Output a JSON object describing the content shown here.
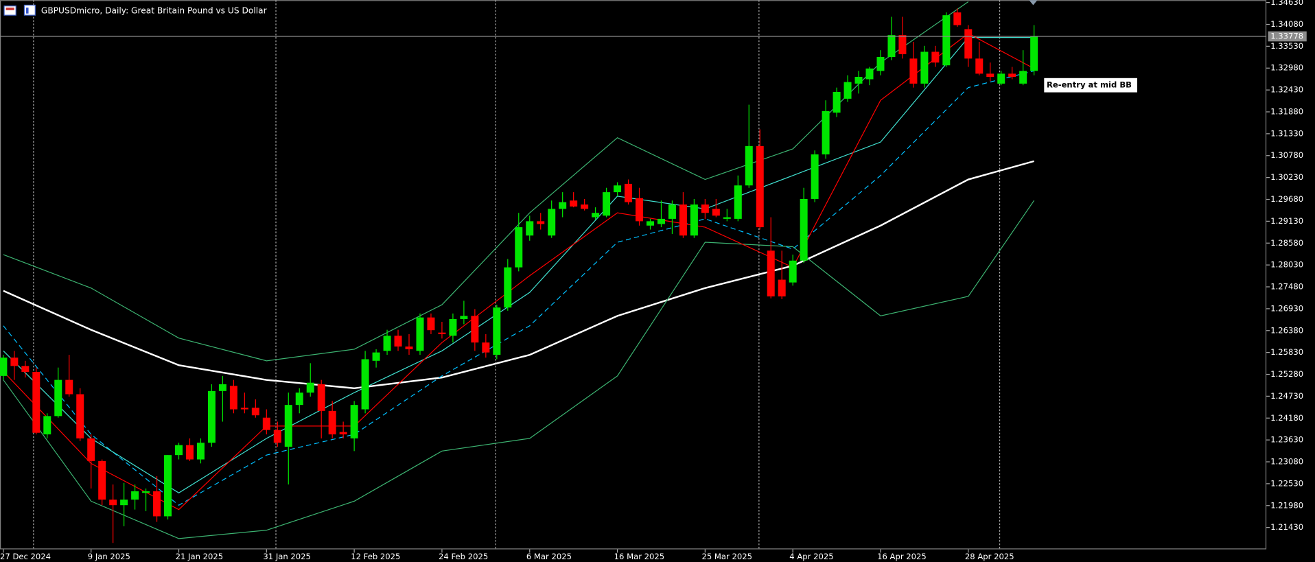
{
  "chart_data": {
    "type": "candlestick",
    "title": "GBPUSDmicro, Daily:  Great Britain Pound vs US Dollar",
    "categories": [
      "27 Dec 2024",
      null,
      null,
      null,
      null,
      null,
      null,
      null,
      "9 Jan 2025",
      null,
      null,
      null,
      null,
      null,
      null,
      null,
      "21 Jan 2025",
      null,
      null,
      null,
      null,
      null,
      null,
      null,
      "31 Jan 2025",
      null,
      null,
      null,
      null,
      null,
      null,
      null,
      "12 Feb 2025",
      null,
      null,
      null,
      null,
      null,
      null,
      null,
      "24 Feb 2025",
      null,
      null,
      null,
      null,
      null,
      null,
      null,
      "6 Mar 2025",
      null,
      null,
      null,
      null,
      null,
      null,
      null,
      "16 Mar 2025",
      null,
      null,
      null,
      null,
      null,
      null,
      null,
      "25 Mar 2025",
      null,
      null,
      null,
      null,
      null,
      null,
      null,
      "4 Apr 2025",
      null,
      null,
      null,
      null,
      null,
      null,
      null,
      "16 Apr 2025",
      null,
      null,
      null,
      null,
      null,
      null,
      null,
      "28 Apr 2025",
      null,
      null,
      null,
      null,
      null,
      null
    ],
    "open": [
      1.2524,
      1.257,
      1.2549,
      1.2534,
      1.2377,
      1.2423,
      1.2514,
      1.2478,
      1.2367,
      1.231,
      1.2213,
      1.2199,
      1.2213,
      1.223,
      1.2234,
      1.2171,
      1.2325,
      1.235,
      1.2314,
      1.2356,
      1.2486,
      1.2499,
      1.2444,
      1.2444,
      1.2419,
      1.2388,
      1.2346,
      1.2451,
      1.2482,
      1.2503,
      1.2436,
      1.2383,
      1.2367,
      1.244,
      1.2562,
      1.2587,
      1.2625,
      1.2598,
      1.2587,
      1.2671,
      1.2633,
      1.2625,
      1.2667,
      1.2675,
      1.2608,
      1.2577,
      1.2696,
      1.2797,
      1.2877,
      1.2913,
      1.2877,
      1.2944,
      1.2965,
      1.2955,
      1.2923,
      1.2927,
      1.2986,
      1.3007,
      1.2971,
      1.2902,
      1.2906,
      1.2919,
      1.2955,
      1.2877,
      1.2955,
      1.2944,
      1.2919,
      1.2919,
      1.3003,
      1.3102,
      1.2839,
      1.2766,
      1.2759,
      1.2814,
      1.2969,
      1.3081,
      1.3186,
      1.3221,
      1.3259,
      1.327,
      1.3291,
      1.3326,
      1.3381,
      1.3322,
      1.3259,
      1.3339,
      1.3305,
      1.3438,
      1.3396,
      1.3322,
      1.3284,
      1.3259,
      1.3284,
      1.3259,
      1.3291
    ],
    "high": [
      1.2577,
      1.2587,
      1.2562,
      1.2545,
      1.243,
      1.2545,
      1.2577,
      1.2493,
      1.2377,
      1.2314,
      1.2251,
      1.2255,
      1.2251,
      1.2241,
      1.2272,
      1.2325,
      1.2356,
      1.2367,
      1.2367,
      1.2503,
      1.2524,
      1.2514,
      1.2482,
      1.2465,
      1.244,
      1.2409,
      1.2482,
      1.2493,
      1.2556,
      1.2514,
      1.2461,
      1.2409,
      1.2461,
      1.2587,
      1.2591,
      1.264,
      1.264,
      1.2629,
      1.2681,
      1.2681,
      1.266,
      1.2681,
      1.2713,
      1.2692,
      1.2629,
      1.2703,
      1.2818,
      1.2934,
      1.2927,
      1.2934,
      1.2965,
      1.2986,
      1.2986,
      1.2969,
      1.2948,
      1.2997,
      1.3011,
      1.3018,
      1.2997,
      1.2919,
      1.2965,
      1.2965,
      1.2986,
      1.2969,
      1.2969,
      1.2969,
      1.2944,
      1.3028,
      1.3206,
      1.3144,
      1.2923,
      1.2839,
      1.2829,
      1.2997,
      1.3091,
      1.3217,
      1.3249,
      1.328,
      1.3291,
      1.3301,
      1.3343,
      1.3427,
      1.3427,
      1.3364,
      1.3354,
      1.3354,
      1.3438,
      1.3448,
      1.3406,
      1.3364,
      1.3312,
      1.3291,
      1.3301,
      1.3343,
      1.3406
    ],
    "low": [
      1.2514,
      1.2514,
      1.252,
      1.2377,
      1.2367,
      1.2419,
      1.2472,
      1.236,
      1.2241,
      1.2199,
      1.2104,
      1.2146,
      1.2188,
      1.2184,
      1.2157,
      1.2163,
      1.2314,
      1.231,
      1.2304,
      1.2346,
      1.2409,
      1.243,
      1.243,
      1.2419,
      1.2377,
      1.2346,
      1.2251,
      1.243,
      1.2472,
      1.2367,
      1.2367,
      1.2367,
      1.2335,
      1.243,
      1.2545,
      1.2577,
      1.2587,
      1.2577,
      1.2577,
      1.2629,
      1.2618,
      1.2608,
      1.2654,
      1.2587,
      1.257,
      1.2566,
      1.2688,
      1.2787,
      1.2864,
      1.2892,
      1.2871,
      1.2923,
      1.2948,
      1.294,
      1.2917,
      1.2923,
      1.2976,
      1.2955,
      1.2902,
      1.2892,
      1.2898,
      1.2881,
      1.2871,
      1.2871,
      1.2919,
      1.2923,
      1.2913,
      1.2913,
      1.2997,
      1.2892,
      1.2719,
      1.2717,
      1.2751,
      1.2808,
      1.2961,
      1.307,
      1.3175,
      1.3213,
      1.3234,
      1.3255,
      1.328,
      1.3318,
      1.3322,
      1.3249,
      1.3249,
      1.3301,
      1.3301,
      1.3402,
      1.3301,
      1.328,
      1.3265,
      1.3255,
      1.327,
      1.3255,
      1.328
    ],
    "close": [
      1.257,
      1.2549,
      1.2534,
      1.2381,
      1.2423,
      1.2514,
      1.2478,
      1.2367,
      1.231,
      1.2213,
      1.2199,
      1.2213,
      1.2234,
      1.2234,
      1.2171,
      1.2325,
      1.235,
      1.2314,
      1.2356,
      1.2486,
      1.2503,
      1.244,
      1.244,
      1.2425,
      1.2388,
      1.2356,
      1.2451,
      1.2482,
      1.2507,
      1.2436,
      1.2377,
      1.2377,
      1.2451,
      1.2566,
      1.2583,
      1.2625,
      1.2598,
      1.2591,
      1.2671,
      1.2639,
      1.2629,
      1.2667,
      1.2675,
      1.2608,
      1.2583,
      1.2696,
      1.2797,
      1.2898,
      1.2913,
      1.2906,
      1.2944,
      1.2961,
      1.295,
      1.2944,
      1.2934,
      1.2986,
      1.3003,
      1.2961,
      1.2913,
      1.2913,
      1.2919,
      1.2955,
      1.2877,
      1.2955,
      1.2934,
      1.2927,
      1.2923,
      1.3003,
      1.3102,
      1.2898,
      1.2724,
      1.2724,
      1.2814,
      1.2969,
      1.3081,
      1.319,
      1.3238,
      1.3263,
      1.3276,
      1.3297,
      1.3326,
      1.3381,
      1.3333,
      1.3259,
      1.3339,
      1.3312,
      1.3431,
      1.3406,
      1.3322,
      1.3284,
      1.3276,
      1.3284,
      1.3276,
      1.3291,
      1.3378
    ],
    "up_color": "#00e600",
    "down_color": "#ff0000",
    "ylim": [
      1.2088,
      1.3469
    ],
    "yticks": [
      {
        "value": 1.3463,
        "label": "1.34630"
      },
      {
        "value": 1.3408,
        "label": "1.34080"
      },
      {
        "value": 1.3353,
        "label": "1.33530"
      },
      {
        "value": 1.3298,
        "label": "1.32980"
      },
      {
        "value": 1.3243,
        "label": "1.32430"
      },
      {
        "value": 1.3188,
        "label": "1.31880"
      },
      {
        "value": 1.3133,
        "label": "1.31330"
      },
      {
        "value": 1.3078,
        "label": "1.30780"
      },
      {
        "value": 1.3023,
        "label": "1.30230"
      },
      {
        "value": 1.2968,
        "label": "1.29680"
      },
      {
        "value": 1.2913,
        "label": "1.29130"
      },
      {
        "value": 1.2858,
        "label": "1.28580"
      },
      {
        "value": 1.2803,
        "label": "1.28030"
      },
      {
        "value": 1.2748,
        "label": "1.27480"
      },
      {
        "value": 1.2693,
        "label": "1.26930"
      },
      {
        "value": 1.2638,
        "label": "1.26380"
      },
      {
        "value": 1.2583,
        "label": "1.25830"
      },
      {
        "value": 1.2528,
        "label": "1.25280"
      },
      {
        "value": 1.2473,
        "label": "1.24730"
      },
      {
        "value": 1.2418,
        "label": "1.24180"
      },
      {
        "value": 1.2363,
        "label": "1.23630"
      },
      {
        "value": 1.2308,
        "label": "1.23080"
      },
      {
        "value": 1.2253,
        "label": "1.22530"
      },
      {
        "value": 1.2198,
        "label": "1.21980"
      },
      {
        "value": 1.2143,
        "label": "1.21430"
      }
    ],
    "last_price": 1.33778,
    "annotation": "Re-entry at mid BB",
    "overlays": [
      {
        "color": "#ffffff",
        "line_style": "thick",
        "x": [
          0,
          8,
          16,
          24,
          32,
          40,
          48,
          56,
          64,
          72,
          80,
          88,
          94
        ],
        "values": [
          1.2738,
          1.264,
          1.2551,
          1.2514,
          1.2493,
          1.252,
          1.2577,
          1.2675,
          1.2745,
          1.2801,
          1.2902,
          1.3018,
          1.3064
        ]
      },
      {
        "color": "#3cb371",
        "line_style": "solid",
        "x": [
          0,
          8,
          16,
          24,
          32,
          40,
          48,
          56,
          64,
          72,
          80,
          88,
          94
        ],
        "values": [
          1.2829,
          1.2745,
          1.2619,
          1.2562,
          1.2591,
          1.2703,
          1.2934,
          1.3123,
          1.3018,
          1.3095,
          1.3312,
          1.3465,
          null
        ]
      },
      {
        "color": "#3cb371",
        "line_style": "solid",
        "x": [
          0,
          8,
          16,
          24,
          32,
          40,
          48,
          56,
          64,
          72,
          80,
          88,
          94
        ],
        "values": [
          1.2514,
          1.2209,
          1.2115,
          1.2136,
          1.2209,
          1.2335,
          1.2367,
          1.2524,
          1.286,
          1.2849,
          1.2675,
          1.2724,
          1.2965
        ]
      },
      {
        "color": "#00bfff",
        "line_style": "dashed",
        "x": [
          0,
          8,
          16,
          24,
          32,
          40,
          48,
          56,
          64,
          72,
          80,
          88,
          94
        ],
        "values": [
          1.265,
          1.2377,
          1.2199,
          1.2325,
          1.2377,
          1.2524,
          1.265,
          1.286,
          1.2919,
          1.2843,
          1.3028,
          1.3249,
          1.3291
        ]
      },
      {
        "color": "#40e0d0",
        "line_style": "solid",
        "x": [
          0,
          8,
          16,
          24,
          32,
          40,
          48,
          56,
          64,
          72,
          80,
          88,
          94
        ],
        "values": [
          1.2587,
          1.2367,
          1.223,
          1.2367,
          1.2482,
          1.2587,
          1.2734,
          1.2976,
          1.2944,
          1.3028,
          1.3112,
          1.3375,
          1.3375
        ]
      },
      {
        "color": "#ff0000",
        "line_style": "solid",
        "x": [
          0,
          8,
          16,
          24,
          32,
          40,
          48,
          56,
          64,
          72,
          80,
          88,
          94
        ],
        "values": [
          1.2535,
          1.2304,
          1.2188,
          1.2398,
          1.2398,
          1.2608,
          1.2776,
          1.2934,
          1.2898,
          1.2797,
          1.3217,
          1.3385,
          1.3297
        ]
      }
    ]
  }
}
